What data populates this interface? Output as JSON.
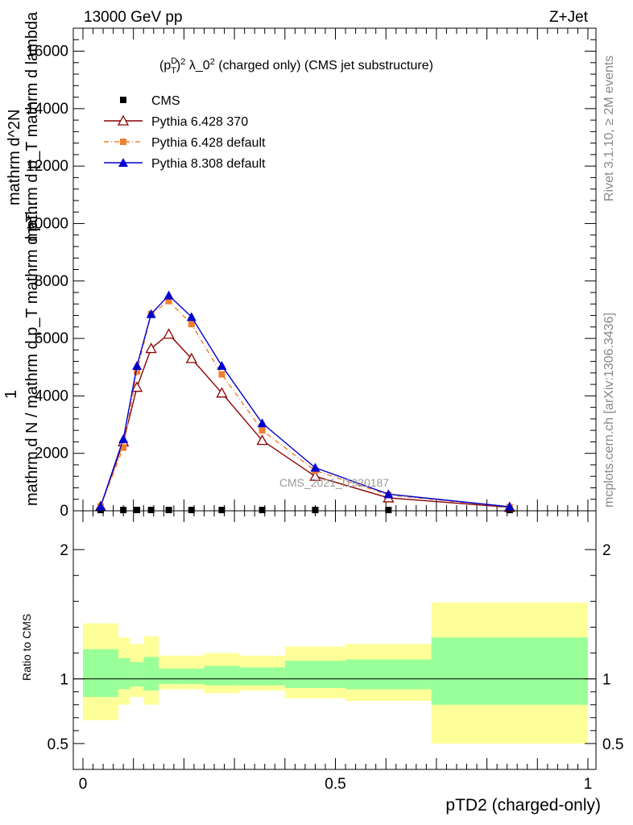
{
  "header": {
    "energy_label": "13000 GeV pp",
    "process_label": "Z+Jet"
  },
  "side_labels": {
    "rivet": "Rivet 3.1.10, ≥ 2M events",
    "mcplots": "mcplots.cern.ch [arXiv:1306.3436]"
  },
  "chart_data": [
    {
      "type": "line",
      "title": "(p_T^D)^2 λ_0^2 (charged only) (CMS jet substructure)",
      "ylabel_num": "1",
      "ylabel_den": "mathrm d N / mathrm d p_T mathrm d pT...",
      "ylabel_top": "mathrm d^2N",
      "ylabel_top2": "mathrm d p_T mathrm d lambda",
      "xlim": [
        0,
        1
      ],
      "ylim": [
        0,
        16800
      ],
      "y_ticks": [
        0,
        2000,
        4000,
        6000,
        8000,
        10000,
        12000,
        14000,
        16000
      ],
      "y_tick_labels": [
        "0",
        "2000",
        "4000",
        "6000",
        "8000",
        "10000",
        "12000",
        "14000",
        "16000"
      ],
      "watermark": "CMS_2021_I1920187",
      "series": [
        {
          "name": "CMS",
          "color": "#000000",
          "marker": "square",
          "x": [
            0.035,
            0.08,
            0.107,
            0.135,
            0.17,
            0.215,
            0.275,
            0.355,
            0.46,
            0.605,
            0.845
          ],
          "y": [
            0,
            0,
            0,
            0,
            0,
            0,
            0,
            0,
            0,
            0,
            0
          ]
        },
        {
          "name": "Pythia 6.428 370",
          "color": "#8b0000",
          "marker": "open-triangle",
          "x": [
            0.035,
            0.08,
            0.107,
            0.135,
            0.17,
            0.215,
            0.275,
            0.355,
            0.46,
            0.605,
            0.845
          ],
          "y": [
            150,
            2400,
            4300,
            5650,
            6150,
            5300,
            4100,
            2450,
            1200,
            450,
            120
          ]
        },
        {
          "name": "Pythia 6.428 default",
          "color": "#f07f30",
          "marker": "square",
          "x": [
            0.035,
            0.08,
            0.107,
            0.135,
            0.17,
            0.215,
            0.275,
            0.355,
            0.46,
            0.605,
            0.845
          ],
          "y": [
            150,
            2200,
            4850,
            6850,
            7300,
            6500,
            4750,
            2800,
            1400,
            550,
            130
          ]
        },
        {
          "name": "Pythia 8.308 default",
          "color": "#0000cc",
          "marker": "filled-triangle",
          "x": [
            0.035,
            0.08,
            0.107,
            0.135,
            0.17,
            0.215,
            0.275,
            0.355,
            0.46,
            0.605,
            0.845
          ],
          "y": [
            150,
            2500,
            5050,
            6850,
            7500,
            6750,
            5050,
            3050,
            1500,
            580,
            140
          ]
        }
      ]
    },
    {
      "type": "area",
      "ylabel": "Ratio to CMS",
      "xlabel": "pTD2 (charged-only)",
      "xlim": [
        0,
        1
      ],
      "ylim": [
        0.3,
        2.3
      ],
      "x_ticks": [
        0,
        0.5,
        1
      ],
      "x_tick_labels": [
        "0",
        "0.5",
        "1"
      ],
      "y_ticks": [
        0.5,
        1,
        2
      ],
      "y_tick_labels": [
        "0.5",
        "1",
        "2"
      ],
      "bin_edges": [
        0.0,
        0.07,
        0.093,
        0.12,
        0.15,
        0.19,
        0.24,
        0.31,
        0.4,
        0.52,
        0.69,
        1.0
      ],
      "outer_band": {
        "color": "#ffff99",
        "low": [
          0.68,
          0.8,
          0.86,
          0.8,
          0.92,
          0.92,
          0.89,
          0.91,
          0.85,
          0.83,
          0.5
        ],
        "high": [
          1.43,
          1.32,
          1.27,
          1.33,
          1.18,
          1.18,
          1.2,
          1.18,
          1.25,
          1.27,
          1.59
        ]
      },
      "inner_band": {
        "color": "#99ff99",
        "low": [
          0.86,
          0.92,
          0.94,
          0.91,
          0.96,
          0.96,
          0.95,
          0.95,
          0.93,
          0.92,
          0.8
        ],
        "high": [
          1.23,
          1.16,
          1.13,
          1.17,
          1.08,
          1.08,
          1.1,
          1.09,
          1.14,
          1.15,
          1.32
        ]
      },
      "reference_line": 1
    }
  ]
}
